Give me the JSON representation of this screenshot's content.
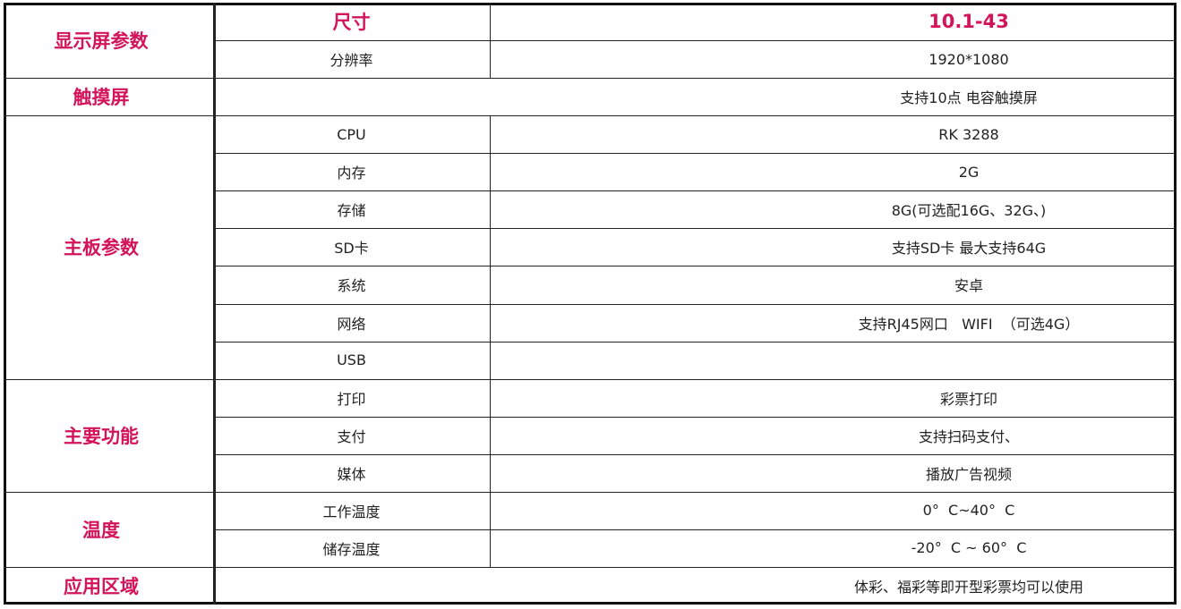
{
  "accent_color": "#d4145a",
  "groups": [
    {
      "label": "显示屏参数",
      "rows": [
        0,
        1
      ]
    },
    {
      "label": "触摸屏",
      "rows": [
        2
      ]
    },
    {
      "label": "主板参数",
      "rows": [
        3,
        9
      ]
    },
    {
      "label": "主要功能",
      "rows": [
        10,
        12
      ]
    },
    {
      "label": "温度",
      "rows": [
        13,
        14
      ]
    },
    {
      "label": "应用区域",
      "rows": [
        15
      ]
    }
  ],
  "rows": [
    {
      "name": "尺寸",
      "value": "10.1-43"
    },
    {
      "name": "分辨率",
      "value": "1920*1080"
    },
    {
      "name": "",
      "value": "支持10点 电容触摸屏"
    },
    {
      "name": "CPU",
      "value": "RK 3288"
    },
    {
      "name": "内存",
      "value": "2G"
    },
    {
      "name": "存储",
      "value": "8G(可选配16G、32G、)"
    },
    {
      "name": "SD卡",
      "value": "支持SD卡 最大支持64G"
    },
    {
      "name": "系统",
      "value": "安卓"
    },
    {
      "name": "网络",
      "value": "支持RJ45网口   WIFI  （可选4G）"
    },
    {
      "name": "USB",
      "value": ""
    },
    {
      "name": "打印",
      "value": "彩票打印"
    },
    {
      "name": "支付",
      "value": "支持扫码支付、"
    },
    {
      "name": "媒体",
      "value": "播放广告视频"
    },
    {
      "name": "工作温度",
      "value": "0°  C~40°  C"
    },
    {
      "name": "储存温度",
      "value": "-20°  C ~ 60°  C"
    },
    {
      "name": "",
      "value": "体彩、福彩等即开型彩票均可以使用"
    }
  ]
}
